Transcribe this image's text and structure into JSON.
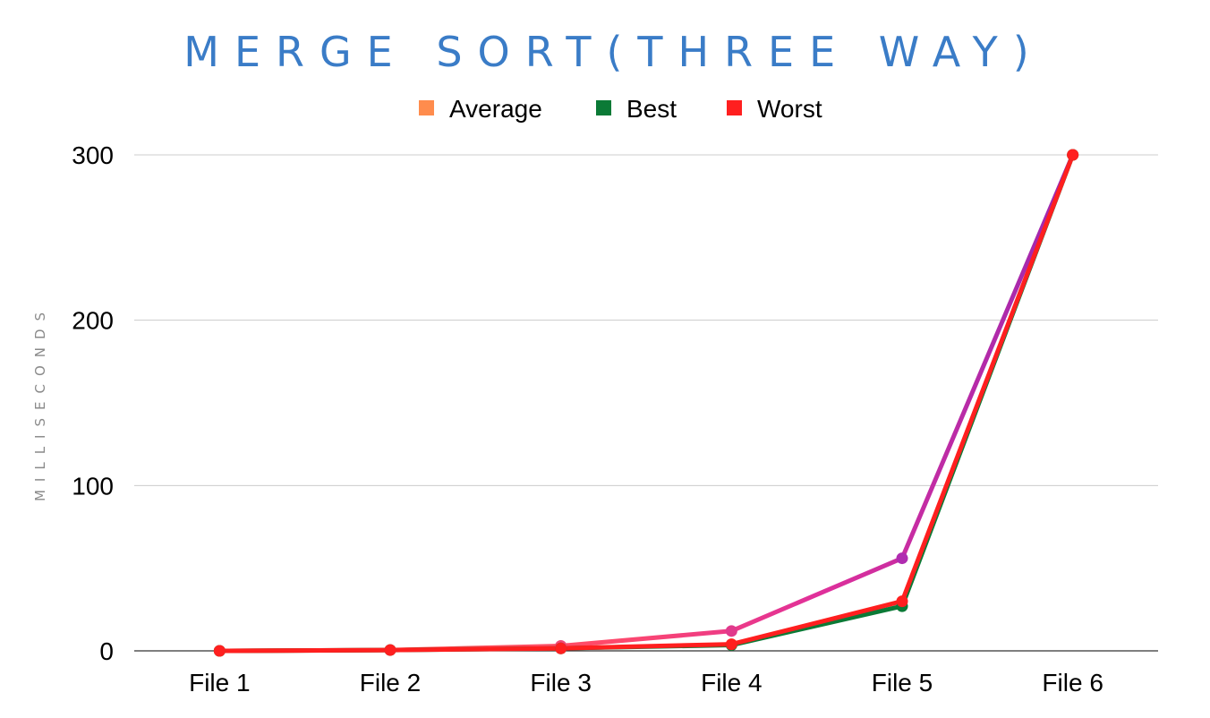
{
  "chart_data": {
    "type": "line",
    "title": "MERGE SORT(THREE WAY)",
    "xlabel": "",
    "ylabel": "MILLISECONDS",
    "categories": [
      "File 1",
      "File 2",
      "File 3",
      "File 4",
      "File 5",
      "File 6"
    ],
    "ylim": [
      0,
      300
    ],
    "yticks": [
      "0",
      "100",
      "200",
      "300"
    ],
    "grid": true,
    "legend_position": "top",
    "series": [
      {
        "name": "Average",
        "color": "#9c27b0",
        "legend_color": "#ff8c4d",
        "values": [
          0,
          0.5,
          3,
          12,
          56,
          300
        ]
      },
      {
        "name": "Best",
        "color": "#0b7a36",
        "legend_color": "#0b7a36",
        "values": [
          0,
          0.5,
          1.5,
          3.5,
          27,
          300
        ]
      },
      {
        "name": "Worst",
        "color": "#ff1f1f",
        "legend_color": "#ff1f1f",
        "values": [
          0,
          0.5,
          1.5,
          4,
          30,
          300
        ]
      }
    ]
  }
}
